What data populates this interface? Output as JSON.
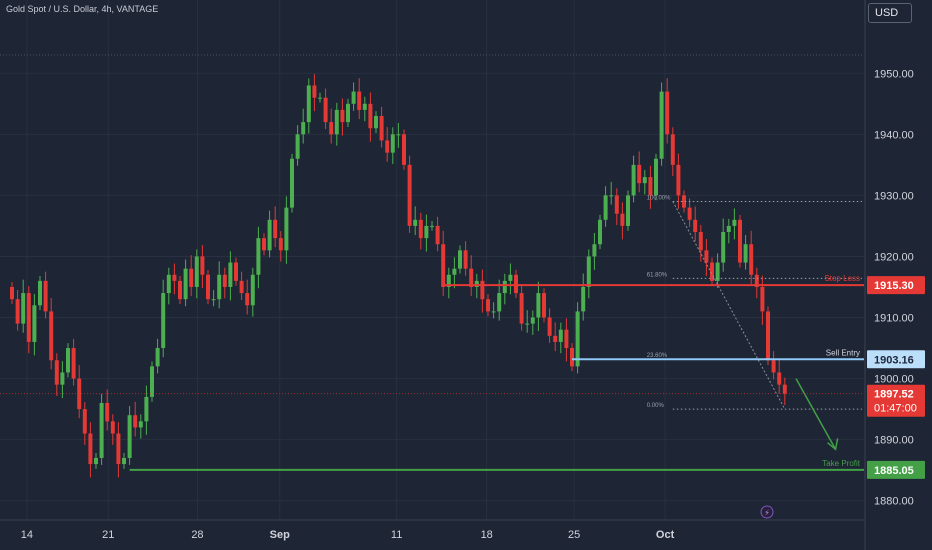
{
  "chart_title": "Gold Spot / U.S. Dollar, 4h, VANTAGE",
  "currency": "USD",
  "colors": {
    "background": "#1e2534",
    "up": "#4caf50",
    "down": "#e53935",
    "resistance": "#e53935",
    "entry": "#90caf9",
    "target": "#43a047",
    "axis_text": "#d1d4dc"
  },
  "chart_data": {
    "type": "candlestick",
    "symbol": "Gold Spot / U.S. Dollar",
    "timeframe": "4h",
    "ylim": [
      1877,
      1962
    ],
    "y_ticks": [
      {
        "value": 1950,
        "label": "1950.00"
      },
      {
        "value": 1940,
        "label": "1940.00"
      },
      {
        "value": 1930,
        "label": "1930.00"
      },
      {
        "value": 1920,
        "label": "1920.00"
      },
      {
        "value": 1910,
        "label": "1910.00"
      },
      {
        "value": 1900,
        "label": "1900.00"
      },
      {
        "value": 1890,
        "label": "1890.00"
      },
      {
        "value": 1880,
        "label": "1880.00"
      }
    ],
    "x_ticks": [
      {
        "label": "14",
        "pos": 0.031,
        "bold": false
      },
      {
        "label": "21",
        "pos": 0.125,
        "bold": false
      },
      {
        "label": "28",
        "pos": 0.228,
        "bold": false
      },
      {
        "label": "Sep",
        "pos": 0.323,
        "bold": true
      },
      {
        "label": "11",
        "pos": 0.458,
        "bold": false
      },
      {
        "label": "18",
        "pos": 0.562,
        "bold": false
      },
      {
        "label": "25",
        "pos": 0.663,
        "bold": false
      },
      {
        "label": "Oct",
        "pos": 0.768,
        "bold": true
      }
    ],
    "close_series": [
      1913,
      1909,
      1914,
      1906,
      1912,
      1916,
      1911,
      1903,
      1899,
      1901,
      1905,
      1900,
      1895,
      1891,
      1886,
      1887,
      1896,
      1893,
      1891,
      1886,
      1887,
      1894,
      1892,
      1893,
      1897,
      1902,
      1905,
      1914,
      1917,
      1916,
      1913,
      1918,
      1915,
      1920,
      1917,
      1913,
      1913,
      1917,
      1915,
      1919,
      1916,
      1914,
      1912,
      1917,
      1923,
      1921,
      1926,
      1923,
      1921,
      1928,
      1936,
      1940,
      1942,
      1948,
      1946,
      1946,
      1942,
      1940,
      1944,
      1942,
      1945,
      1947,
      1944,
      1945,
      1941,
      1943,
      1939,
      1937,
      1940,
      1940,
      1935,
      1925,
      1926,
      1923,
      1925,
      1925,
      1922,
      1915,
      1917,
      1918,
      1921,
      1918,
      1915,
      1916,
      1913,
      1911,
      1911,
      1914,
      1916,
      1917,
      1914,
      1909,
      1909,
      1910,
      1914,
      1910,
      1907,
      1906,
      1908,
      1905,
      1902,
      1911,
      1915,
      1920,
      1922,
      1926,
      1930,
      1930,
      1927,
      1925,
      1930,
      1935,
      1932,
      1933,
      1930,
      1936,
      1947,
      1940,
      1935,
      1930,
      1928,
      1926,
      1924,
      1921,
      1919,
      1916,
      1919,
      1924,
      1925,
      1926,
      1919,
      1922,
      1917,
      1915,
      1911,
      1903,
      1901,
      1899,
      1897.52
    ],
    "levels": [
      {
        "label": "Stop Loss",
        "value": 1915.3,
        "tag": "1915.30"
      },
      {
        "label": "Sell Entry",
        "value": 1903.16,
        "tag": "1903.16"
      },
      {
        "label": "Take Profit",
        "value": 1885.05,
        "tag": "1885.05"
      }
    ],
    "last_price": {
      "value": 1897.52,
      "tag": "1897.52",
      "countdown": "01:47:00"
    },
    "fib_levels": [
      {
        "label": "100.00%",
        "value": 1929.0
      },
      {
        "label": "61.80%",
        "value": 1916.4
      },
      {
        "label": "23.60%",
        "value": 1903.2
      },
      {
        "label": "0.00%",
        "value": 1895.0
      }
    ],
    "session_high": 1953.0
  }
}
